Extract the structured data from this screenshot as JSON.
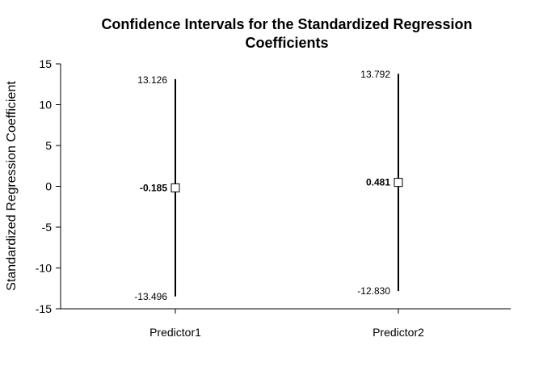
{
  "chart_data": {
    "type": "errorbar",
    "title_lines": [
      "Confidence Intervals for the Standardized Regression",
      "Coefficients"
    ],
    "xlabel": "",
    "ylabel": "Standardized Regression Coefficient",
    "ylim": [
      -15,
      15
    ],
    "yticks": [
      -15,
      -10,
      -5,
      0,
      5,
      10,
      15
    ],
    "categories": [
      "Predictor1",
      "Predictor2"
    ],
    "estimates": [
      -0.185,
      0.481
    ],
    "lower": [
      -13.496,
      -12.83
    ],
    "upper": [
      13.126,
      13.792
    ],
    "estimate_labels": [
      "-0.185",
      "0.481"
    ],
    "lower_labels": [
      "-13.496",
      "-12.830"
    ],
    "upper_labels": [
      "13.126",
      "13.792"
    ],
    "marker": "open-square",
    "grid": false,
    "color": "#000000"
  }
}
